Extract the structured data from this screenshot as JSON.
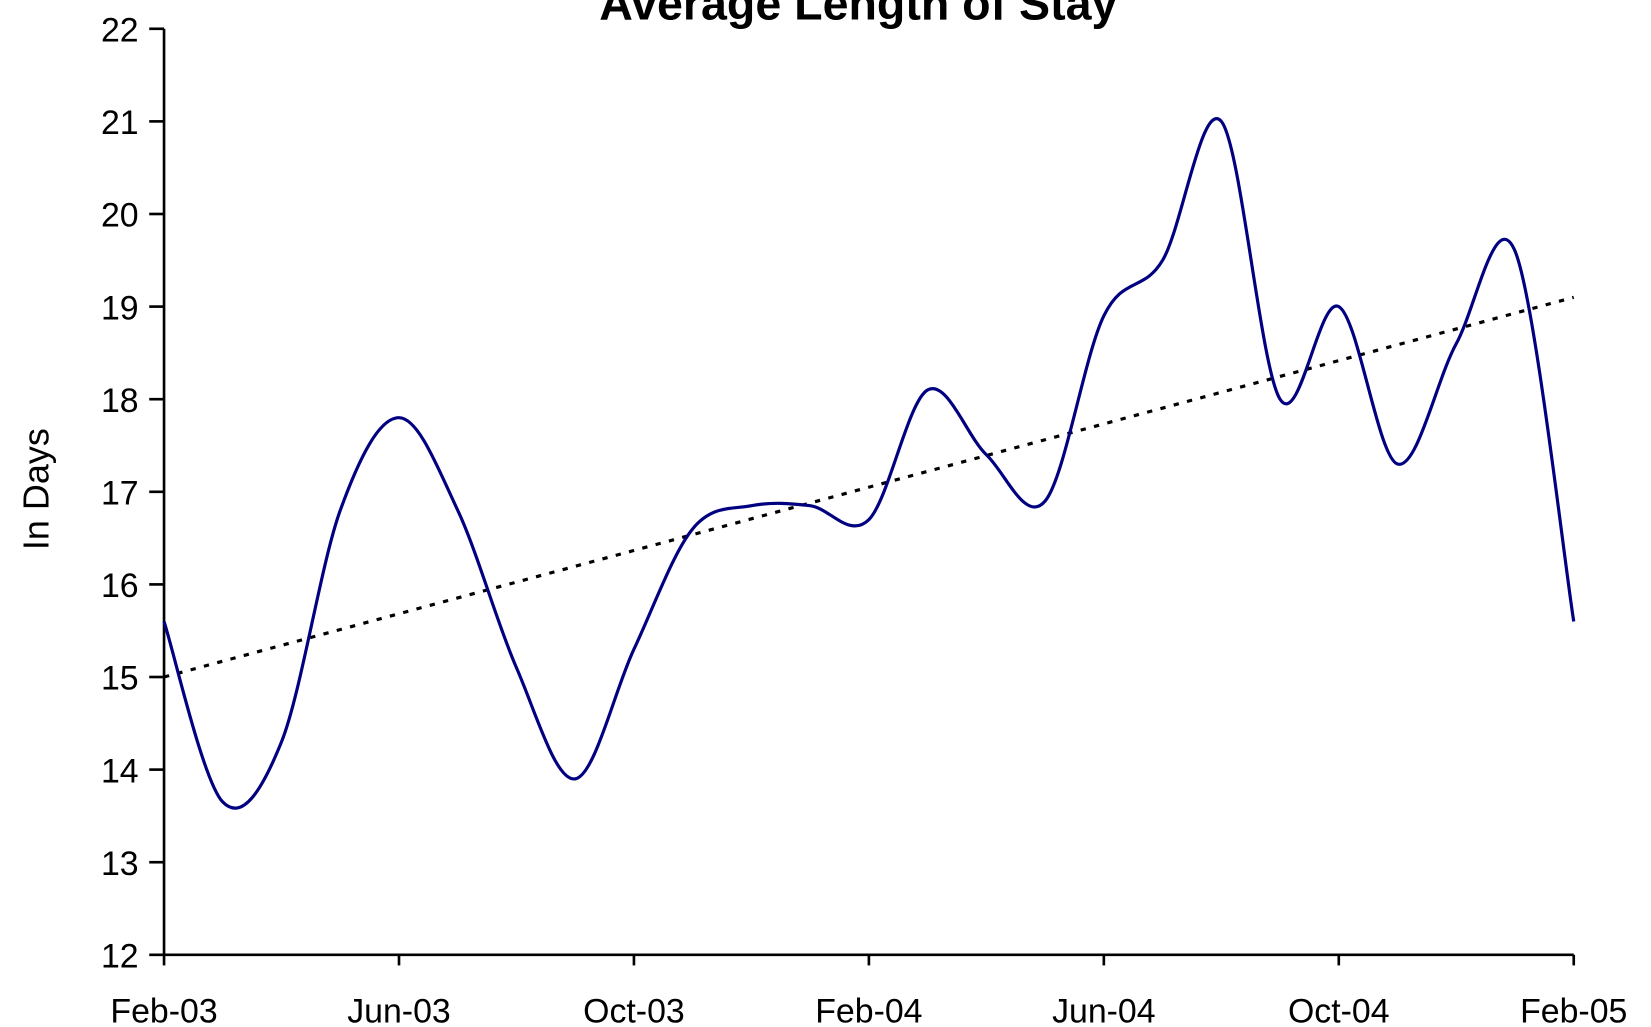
{
  "chart_data": {
    "type": "line",
    "title": "Average Length of Stay",
    "y_label": "In Days",
    "categories": [
      "Feb-03",
      null,
      null,
      null,
      "Jun-03",
      null,
      null,
      null,
      "Oct-03",
      null,
      null,
      null,
      "Feb-04",
      null,
      null,
      null,
      "Jun-04",
      null,
      null,
      null,
      "Oct-04",
      null,
      null,
      null,
      "Feb-05"
    ],
    "series": [
      {
        "name": "Average Length of Stay",
        "color": "#000080",
        "values": [
          15.6,
          13.65,
          14.3,
          16.8,
          17.8,
          16.8,
          15.1,
          13.9,
          15.3,
          16.6,
          16.85,
          16.85,
          16.7,
          18.1,
          17.4,
          16.9,
          18.9,
          19.5,
          21.0,
          18.0,
          19.0,
          17.3,
          18.6,
          19.6,
          15.6
        ]
      }
    ],
    "trend": {
      "start": 15.0,
      "end": 19.1,
      "color": "#000000",
      "style": "dotted"
    },
    "smooth": true,
    "ylim": [
      12,
      22
    ],
    "yticks": [
      12,
      13,
      14,
      15,
      16,
      17,
      18,
      19,
      20,
      21,
      22
    ],
    "grid": false
  }
}
